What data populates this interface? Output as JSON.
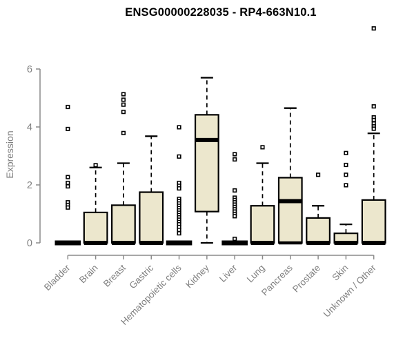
{
  "title": "ENSG00000228035 - RP4-663N10.1",
  "chart_data": {
    "type": "boxplot",
    "title": "ENSG00000228035 - RP4-663N10.1",
    "xlabel": "",
    "ylabel": "Expression",
    "ylim": [
      0,
      6
    ],
    "yticks": [
      0,
      2,
      4,
      6
    ],
    "grid": false,
    "legend": "none",
    "categories": [
      "Bladder",
      "Brain",
      "Breast",
      "Gastric",
      "Hematopoietic cells",
      "Kidney",
      "Liver",
      "Lung",
      "Pancreas",
      "Prostate",
      "Skin",
      "Unknown / Other"
    ],
    "boxes": [
      {
        "category": "Bladder",
        "q1": 0,
        "median": 0,
        "q3": 0,
        "whisker_low": 0,
        "whisker_high": 0,
        "outliers": [
          4.69,
          3.93,
          2.27,
          2.07,
          1.95,
          1.4,
          1.31,
          1.22
        ]
      },
      {
        "category": "Brain",
        "q1": 0,
        "median": 0,
        "q3": 1.05,
        "whisker_low": 0,
        "whisker_high": 2.6,
        "outliers": [
          2.68
        ]
      },
      {
        "category": "Breast",
        "q1": 0,
        "median": 0,
        "q3": 1.3,
        "whisker_low": 0,
        "whisker_high": 2.75,
        "outliers": [
          5.13,
          4.94,
          4.77,
          4.52,
          3.79
        ]
      },
      {
        "category": "Gastric",
        "q1": 0,
        "median": 0,
        "q3": 1.75,
        "whisker_low": 0,
        "whisker_high": 3.68,
        "outliers": []
      },
      {
        "category": "Hematopoietic cells",
        "q1": 0,
        "median": 0,
        "q3": 0,
        "whisker_low": 0,
        "whisker_high": 0,
        "outliers": [
          3.99,
          2.98,
          2.07,
          1.97,
          1.88,
          1.52,
          1.44,
          1.36,
          1.28,
          1.2,
          1.12,
          1.04,
          0.96,
          0.88,
          0.8,
          0.72,
          0.64,
          0.55,
          0.45,
          0.33
        ]
      },
      {
        "category": "Kidney",
        "q1": 1.08,
        "median": 3.55,
        "q3": 4.42,
        "whisker_low": 0,
        "whisker_high": 5.7,
        "outliers": []
      },
      {
        "category": "Liver",
        "q1": 0,
        "median": 0,
        "q3": 0,
        "whisker_low": 0,
        "whisker_high": 0,
        "outliers": [
          3.06,
          2.88,
          1.81,
          1.56,
          1.48,
          1.4,
          1.32,
          1.24,
          1.16,
          1.08,
          1.0,
          0.92,
          0.14
        ]
      },
      {
        "category": "Lung",
        "q1": 0,
        "median": 0,
        "q3": 1.28,
        "whisker_low": 0,
        "whisker_high": 2.75,
        "outliers": [
          3.3
        ]
      },
      {
        "category": "Pancreas",
        "q1": 0,
        "median": 1.44,
        "q3": 2.25,
        "whisker_low": 0,
        "whisker_high": 4.65,
        "outliers": []
      },
      {
        "category": "Prostate",
        "q1": 0,
        "median": 0,
        "q3": 0.86,
        "whisker_low": 0,
        "whisker_high": 1.28,
        "outliers": [
          2.35
        ]
      },
      {
        "category": "Skin",
        "q1": 0,
        "median": 0,
        "q3": 0.33,
        "whisker_low": 0,
        "whisker_high": 0.64,
        "outliers": [
          3.1,
          2.69,
          2.35,
          1.99
        ]
      },
      {
        "category": "Unknown / Other",
        "q1": 0,
        "median": 0,
        "q3": 1.48,
        "whisker_low": 0,
        "whisker_high": 3.78,
        "outliers": [
          7.4,
          4.71,
          4.33,
          4.24,
          4.12,
          4.02,
          3.94
        ]
      }
    ],
    "colors": {
      "box_fill": "#ECE7CD",
      "box_stroke": "#000000",
      "whisker": "#000000",
      "axis": "#8a8a8a",
      "tick_label": "#7f7f7f",
      "title": "#000000",
      "background": "#ffffff"
    }
  }
}
